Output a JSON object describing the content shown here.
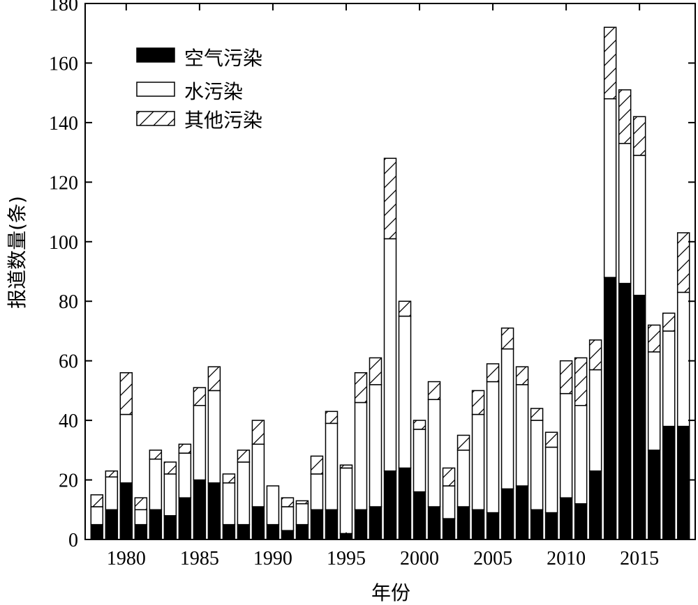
{
  "chart_data": {
    "type": "bar",
    "stacked": true,
    "xlabel": "年份",
    "ylabel": "报道数量(条)",
    "ylim": [
      0,
      180
    ],
    "yticks": [
      0,
      20,
      40,
      60,
      80,
      100,
      120,
      140,
      160,
      180
    ],
    "xticks": [
      1980,
      1985,
      1990,
      1995,
      2000,
      2005,
      2010,
      2015
    ],
    "xlim": [
      1977.2,
      2018.8
    ],
    "legend_position": "top-left",
    "grid": false,
    "x": [
      1978,
      1979,
      1980,
      1981,
      1982,
      1983,
      1984,
      1985,
      1986,
      1987,
      1988,
      1989,
      1990,
      1991,
      1992,
      1993,
      1994,
      1995,
      1996,
      1997,
      1998,
      1999,
      2000,
      2001,
      2002,
      2003,
      2004,
      2005,
      2006,
      2007,
      2008,
      2009,
      2010,
      2011,
      2012,
      2013,
      2014,
      2015,
      2016,
      2017,
      2018
    ],
    "series": [
      {
        "name": "空气污染",
        "fill": "#000000",
        "pattern": "solid",
        "values": [
          5,
          10,
          19,
          5,
          10,
          8,
          14,
          20,
          19,
          5,
          5,
          11,
          5,
          3,
          5,
          10,
          10,
          2,
          10,
          11,
          23,
          24,
          16,
          11,
          7,
          11,
          10,
          9,
          17,
          18,
          10,
          9,
          14,
          12,
          23,
          88,
          86,
          82,
          30,
          38,
          38
        ]
      },
      {
        "name": "水污染",
        "fill": "#ffffff",
        "pattern": "none",
        "values": [
          6,
          11,
          23,
          5,
          17,
          14,
          15,
          25,
          31,
          14,
          21,
          21,
          13,
          8,
          7,
          12,
          29,
          22,
          36,
          41,
          78,
          51,
          21,
          36,
          11,
          19,
          32,
          44,
          47,
          34,
          30,
          22,
          35,
          33,
          34,
          60,
          47,
          47,
          33,
          32,
          45
        ]
      },
      {
        "name": "其他污染",
        "fill": "#ffffff",
        "pattern": "hatch",
        "values": [
          4,
          2,
          14,
          4,
          3,
          4,
          3,
          6,
          8,
          3,
          4,
          8,
          0,
          3,
          1,
          6,
          4,
          1,
          10,
          9,
          27,
          5,
          3,
          6,
          6,
          5,
          8,
          6,
          7,
          6,
          4,
          5,
          11,
          16,
          10,
          24,
          18,
          13,
          9,
          6,
          20
        ]
      }
    ]
  }
}
